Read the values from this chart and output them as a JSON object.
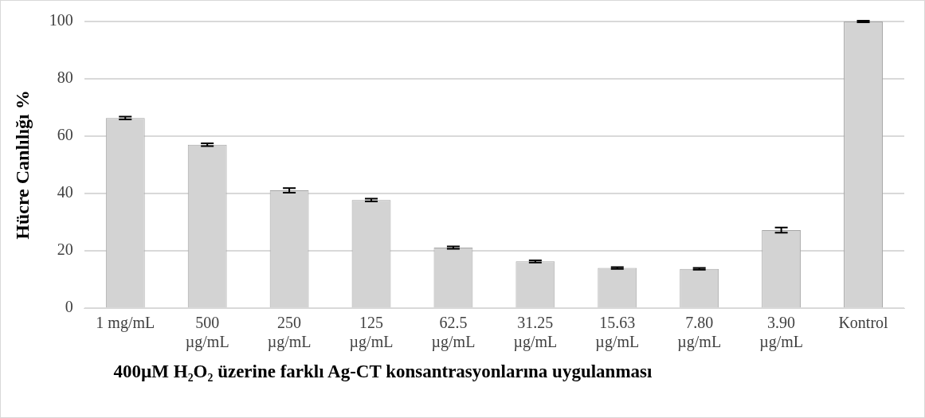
{
  "chart_data": {
    "type": "bar",
    "xlabel": "400µM H₂O₂ üzerine farklı Ag-CT konsantrasyonlarına uygulanması",
    "ylabel": "Hücre Canlılığı %",
    "categories": [
      "1 mg/mL",
      "500\nµg/mL",
      "250\nµg/mL",
      "125\nµg/mL",
      "62.5\nµg/mL",
      "31.25\nµg/mL",
      "15.63\nµg/mL",
      "7.80\nµg/mL",
      "3.90\nµg/mL",
      "Kontrol"
    ],
    "values": [
      66.3,
      57,
      41.1,
      37.7,
      21.1,
      16.3,
      14,
      13.7,
      27.2,
      100
    ],
    "errors": [
      0.5,
      0.5,
      0.8,
      0.5,
      0.4,
      0.4,
      0.3,
      0.3,
      0.9,
      0.3
    ],
    "color": "#d3d3d3",
    "ylim": [
      0,
      100
    ],
    "yticks": [
      0,
      20,
      40,
      60,
      80,
      100
    ],
    "grid": "y",
    "legend": false
  }
}
